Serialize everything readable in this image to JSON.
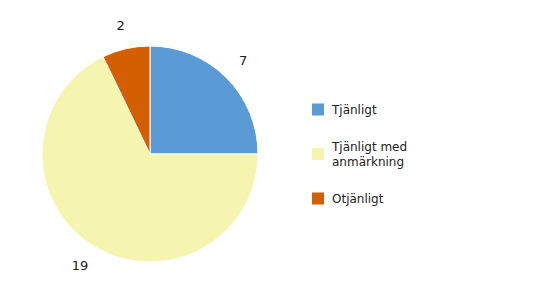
{
  "chart_data": {
    "type": "pie",
    "categories": [
      "Tjänligt",
      "Tjänligt med\nanmärkning",
      "Otjänligt"
    ],
    "values": [
      7,
      19,
      2
    ],
    "colors": [
      "#5b9bd5",
      "#f5f5b0",
      "#d45f00"
    ],
    "data_labels": true,
    "legend": "right"
  }
}
